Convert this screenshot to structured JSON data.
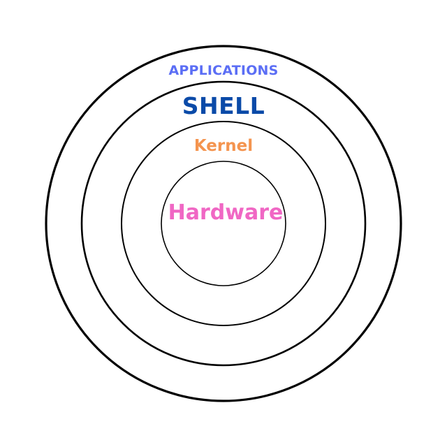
{
  "layers": [
    {
      "key": "applications",
      "label": "APPLICATIONS",
      "color": "#5b6ef5"
    },
    {
      "key": "shell",
      "label": "SHELL",
      "color": "#0a4aa8"
    },
    {
      "key": "kernel",
      "label": "Kernel",
      "color": "#f4944f"
    },
    {
      "key": "hardware",
      "label": "Hardware",
      "color": "#f067c4"
    }
  ],
  "ring_color": "#000000",
  "background": "#ffffff"
}
